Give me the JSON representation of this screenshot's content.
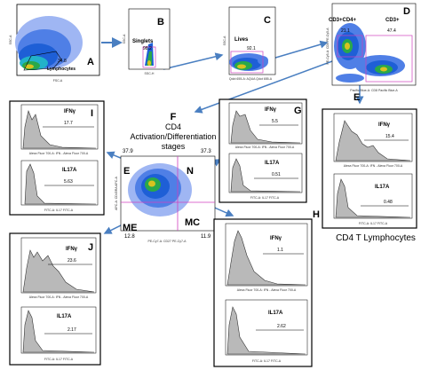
{
  "panels": {
    "A": {
      "letter": "A",
      "gate_value": "34.8",
      "gate_name": "Lymphocytes",
      "xaxis": "FSC-A",
      "yaxis": "SSC-A"
    },
    "B": {
      "letter": "B",
      "gate_name": "Singlets",
      "gate_value": "98.2",
      "xaxis": "SSC-H",
      "yaxis": "SSC-A"
    },
    "C": {
      "letter": "C",
      "gate_name": "Lives",
      "gate_value": "92.1",
      "xaxis": "Qdot 655-A: AQUA Qdot 655-A",
      "yaxis": "SSC-A"
    },
    "D": {
      "letter": "D",
      "gate1_name": "CD3+CD4+",
      "gate1_value": "21.1",
      "gate2_name": "CD3+",
      "gate2_value": "47.4",
      "xaxis": "Pacific Blue-A: CD8 Pacific Blue-A",
      "yaxis": "PE-Cy5-A: CD4 PE-Cy5-A"
    },
    "E_center": {
      "letter": "E",
      "q_tl": "37.9",
      "q_tr": "37.3",
      "q_bl": "12.8",
      "q_br": "11.9",
      "label_me": "ME",
      "label_n": "N",
      "label_mc": "MC",
      "xaxis": "PE-Cy7-A: CD27 PE-Cy7-A",
      "yaxis": "APC-A: CD45RA APC-A"
    },
    "F": {
      "letter": "F",
      "title_line1": "CD4",
      "title_line2": "Activation/Differentiation",
      "title_line3": "stages"
    },
    "I": {
      "letter": "I",
      "marker1": "IFNγ",
      "value1": "17.7",
      "marker2": "IL17A",
      "value2": "5.63",
      "xaxis1": "Alexa Fluor 700-A: IFN - Alexa Fluor 700-A",
      "xaxis2": "FITC-A: IL17 FITC-A"
    },
    "G": {
      "letter": "G",
      "marker1": "IFNγ",
      "value1": "5.5",
      "marker2": "IL17A",
      "value2": "0.51",
      "xaxis1": "Alexa Fluor 700-A: IFN - Alexa Fluor 700-A",
      "xaxis2": "FITC-A: IL17 FITC-A"
    },
    "E_right": {
      "letter": "E",
      "marker1": "IFNγ",
      "value1": "15.4",
      "marker2": "IL17A",
      "value2": "0.48",
      "xaxis1": "Alexa Fluor 700-A: IFN - Alexa Fluor 700-A",
      "xaxis2": "FITC-A: IL17 FITC-A",
      "caption": "CD4 T Lymphocytes"
    },
    "J": {
      "letter": "J",
      "marker1": "IFNγ",
      "value1": "23.6",
      "marker2": "IL17A",
      "value2": "2.17",
      "xaxis1": "Alexa Fluor 700-A: IFN - Alexa Fluor 700-A",
      "xaxis2": "FITC-A: IL17 FITC-A"
    },
    "H": {
      "letter": "H",
      "marker1": "IFNγ",
      "value1": "1.1",
      "marker2": "IL17A",
      "value2": "2.62",
      "xaxis1": "Alexa Fluor 700-A: IFN - Alexa Fluor 700-A",
      "xaxis2": "FITC-A: IL17 FITC-A"
    }
  },
  "colors": {
    "arrow": "#4a7fc1",
    "gate": "#d03fbf",
    "hist_fill": "#b9b9b9",
    "hist_line": "#333333",
    "dense": "#2aa84a",
    "mid": "#1e5fd6",
    "sparse": "#3a6ff0"
  }
}
